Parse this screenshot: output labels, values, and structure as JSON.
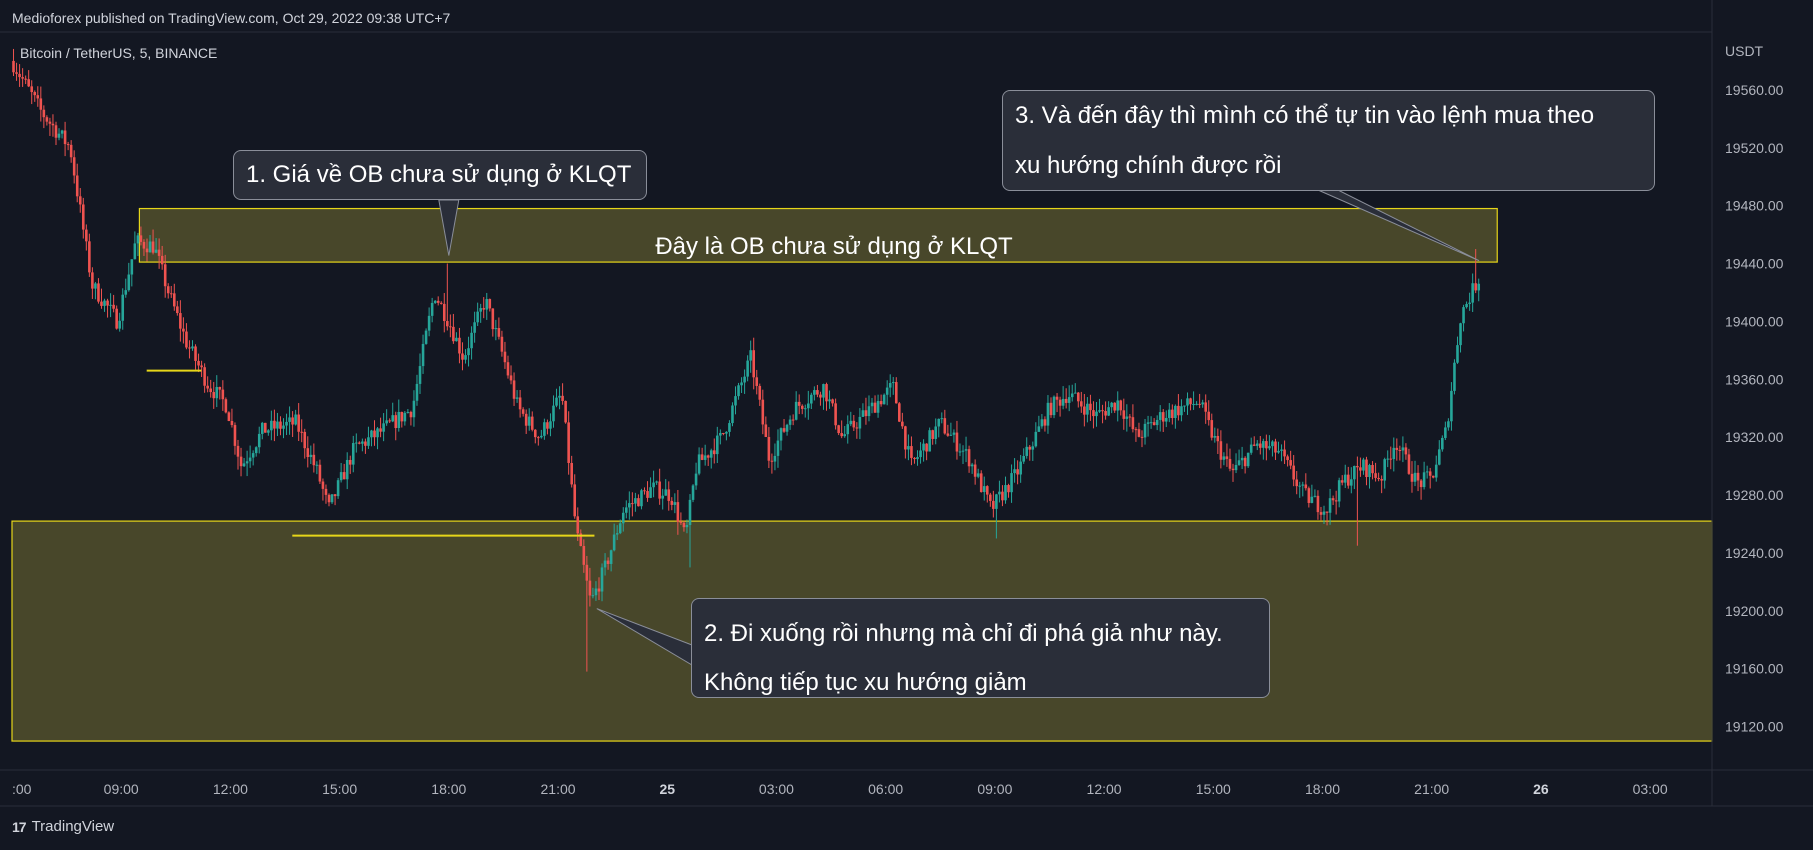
{
  "header": {
    "published": "Medioforex published on TradingView.com, Oct 29, 2022 09:38 UTC+7"
  },
  "symbol": {
    "label": "Bitcoin / TetherUS, 5, BINANCE"
  },
  "footer": {
    "brand": "TradingView"
  },
  "colors": {
    "background": "#131722",
    "up": "#26a69a",
    "down": "#ef5350",
    "zone_fill": "#4b4a2b",
    "zone_border": "#e6d619",
    "callout_bg": "#2a2e39",
    "axis_text": "#b2b5be"
  },
  "annotations": {
    "ob_zone_label": "Đây là OB chưa sử dụng ở KLQT",
    "callout1": "1. Giá về OB chưa sử dụng ở KLQT",
    "callout2_line1": "2. Đi xuống rồi nhưng mà chỉ đi phá giả như này.",
    "callout2_line2": "Không tiếp tục xu hướng giảm",
    "callout3_line1": "3. Và đến đây thì mình có thể tự tin vào lệnh mua theo",
    "callout3_line2": "xu hướng chính được rồi"
  },
  "chart_data": {
    "type": "candlestick",
    "symbol": "Bitcoin / TetherUS",
    "interval": "5",
    "exchange": "BINANCE",
    "currency": "USDT",
    "ylim": [
      19090,
      19600
    ],
    "y_ticks": [
      19560,
      19520,
      19480,
      19440,
      19400,
      19360,
      19320,
      19280,
      19240,
      19200,
      19160,
      19120
    ],
    "x_ticks": [
      {
        "label": ":00",
        "t": 6,
        "bold": false
      },
      {
        "label": "09:00",
        "t": 9,
        "bold": false
      },
      {
        "label": "12:00",
        "t": 12,
        "bold": false
      },
      {
        "label": "15:00",
        "t": 15,
        "bold": false
      },
      {
        "label": "18:00",
        "t": 18,
        "bold": false
      },
      {
        "label": "21:00",
        "t": 21,
        "bold": false
      },
      {
        "label": "25",
        "t": 24,
        "bold": true
      },
      {
        "label": "03:00",
        "t": 27,
        "bold": false
      },
      {
        "label": "06:00",
        "t": 30,
        "bold": false
      },
      {
        "label": "09:00",
        "t": 33,
        "bold": false
      },
      {
        "label": "12:00",
        "t": 36,
        "bold": false
      },
      {
        "label": "15:00",
        "t": 39,
        "bold": false
      },
      {
        "label": "18:00",
        "t": 42,
        "bold": false
      },
      {
        "label": "21:00",
        "t": 45,
        "bold": false
      },
      {
        "label": "26",
        "t": 48,
        "bold": true
      },
      {
        "label": "03:00",
        "t": 51,
        "bold": false
      }
    ],
    "x_range_hours": [
      6.0,
      52.7
    ],
    "zones": [
      {
        "name": "ob-zone-top",
        "t_start": 9.5,
        "t_end": 46.8,
        "y_low": 19441,
        "y_high": 19478
      },
      {
        "name": "demand-zone-bottom",
        "t_start": 6.0,
        "t_end": 52.7,
        "y_low": 19110,
        "y_high": 19262
      }
    ],
    "lines": [
      {
        "name": "low-line-1",
        "t_start": 9.7,
        "t_end": 11.2,
        "y": 19366
      },
      {
        "name": "low-line-2",
        "t_start": 13.7,
        "t_end": 22.0,
        "y": 19252
      }
    ],
    "path": [
      [
        6.0,
        19580
      ],
      [
        6.8,
        19545
      ],
      [
        7.6,
        19520
      ],
      [
        8.2,
        19425
      ],
      [
        8.9,
        19400
      ],
      [
        9.4,
        19455
      ],
      [
        9.9,
        19452
      ],
      [
        10.3,
        19420
      ],
      [
        10.8,
        19385
      ],
      [
        11.4,
        19356
      ],
      [
        11.9,
        19342
      ],
      [
        12.3,
        19300
      ],
      [
        12.9,
        19325
      ],
      [
        13.8,
        19330
      ],
      [
        14.4,
        19295
      ],
      [
        14.7,
        19270
      ],
      [
        15.4,
        19312
      ],
      [
        16.2,
        19325
      ],
      [
        17.0,
        19340
      ],
      [
        17.6,
        19420
      ],
      [
        18.0,
        19400
      ],
      [
        18.4,
        19375
      ],
      [
        19.0,
        19415
      ],
      [
        19.5,
        19375
      ],
      [
        19.9,
        19340
      ],
      [
        20.5,
        19320
      ],
      [
        21.1,
        19350
      ],
      [
        21.5,
        19255
      ],
      [
        21.9,
        19205
      ],
      [
        22.3,
        19230
      ],
      [
        22.8,
        19270
      ],
      [
        23.6,
        19285
      ],
      [
        24.1,
        19280
      ],
      [
        24.5,
        19250
      ],
      [
        24.8,
        19300
      ],
      [
        25.5,
        19320
      ],
      [
        26.3,
        19375
      ],
      [
        26.8,
        19305
      ],
      [
        27.5,
        19340
      ],
      [
        28.3,
        19355
      ],
      [
        28.8,
        19320
      ],
      [
        29.6,
        19340
      ],
      [
        30.2,
        19355
      ],
      [
        30.7,
        19300
      ],
      [
        31.5,
        19330
      ],
      [
        32.3,
        19305
      ],
      [
        32.9,
        19270
      ],
      [
        33.6,
        19295
      ],
      [
        34.5,
        19340
      ],
      [
        35.0,
        19350
      ],
      [
        35.8,
        19335
      ],
      [
        36.4,
        19345
      ],
      [
        36.9,
        19320
      ],
      [
        37.6,
        19335
      ],
      [
        38.6,
        19345
      ],
      [
        39.0,
        19320
      ],
      [
        39.5,
        19295
      ],
      [
        40.2,
        19315
      ],
      [
        40.8,
        19310
      ],
      [
        41.5,
        19280
      ],
      [
        42.1,
        19270
      ],
      [
        42.6,
        19290
      ],
      [
        43.1,
        19300
      ],
      [
        43.6,
        19292
      ],
      [
        44.0,
        19318
      ],
      [
        44.6,
        19288
      ],
      [
        45.0,
        19292
      ],
      [
        45.4,
        19325
      ],
      [
        45.8,
        19405
      ],
      [
        46.3,
        19430
      ]
    ],
    "extremes": [
      {
        "t": 21.8,
        "low": 19158
      },
      {
        "t": 18.0,
        "high": 19440
      },
      {
        "t": 46.2,
        "high": 19450
      },
      {
        "t": 24.6,
        "low": 19230
      },
      {
        "t": 33.0,
        "low": 19250
      },
      {
        "t": 43.0,
        "low": 19245
      }
    ]
  }
}
